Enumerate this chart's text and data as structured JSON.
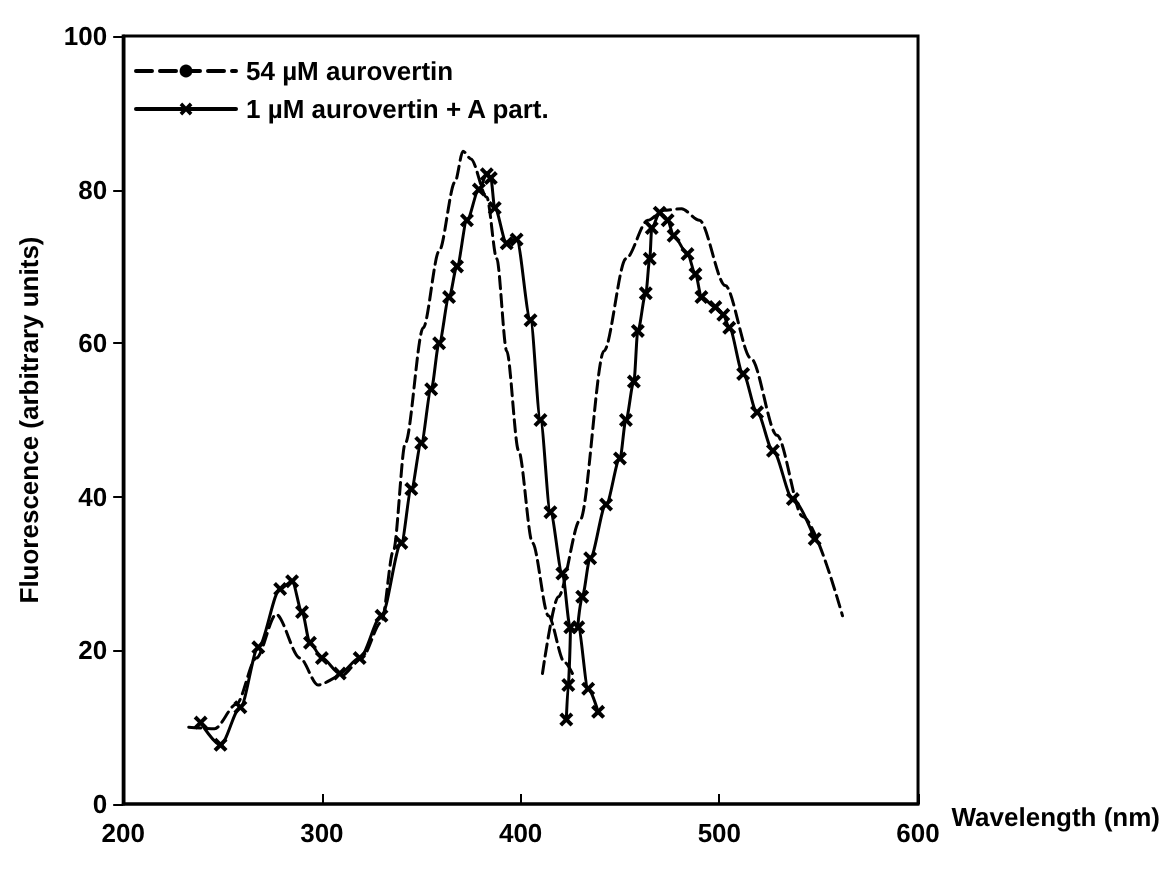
{
  "chart_data": {
    "type": "line",
    "xlabel": "Wavelength (nm)",
    "ylabel": "Fluorescence (arbitrary units)",
    "xlim": [
      200,
      600
    ],
    "xticks": [
      200,
      300,
      400,
      500,
      600
    ],
    "ylim": [
      0,
      100
    ],
    "yticks": [
      0,
      20,
      40,
      60,
      80,
      100
    ],
    "grid": false,
    "legend": "top left",
    "series": [
      {
        "name": "54 µM aurovertin",
        "color": "#000000",
        "marker": "none",
        "line_style": "dashed",
        "x": [
          233,
          246,
          257,
          267,
          277,
          289,
          298,
          310,
          320,
          330,
          336,
          342,
          351,
          359,
          367,
          371,
          375,
          383,
          388,
          393,
          399,
          406,
          414,
          422,
          427
        ],
        "values": [
          10,
          9.8,
          13,
          19,
          24.7,
          19,
          15.5,
          16.7,
          19,
          23.7,
          33,
          47,
          62,
          72,
          81,
          85,
          84,
          79,
          71,
          59,
          46,
          34,
          24.5,
          18.5,
          16.5
        ]
      },
      {
        "color": "#000000",
        "marker": "none",
        "line_style": "dashed",
        "x": [
          411,
          419,
          430,
          442,
          453,
          464,
          472,
          481,
          490,
          503,
          516,
          529,
          542,
          562
        ],
        "values": [
          17,
          27,
          37,
          59,
          71,
          76,
          77.3,
          77.5,
          76,
          67.5,
          58,
          48,
          37.4,
          24.5
        ]
      },
      {
        "name": "1 µM aurovertin + A part.",
        "color": "#000000",
        "marker": "cross",
        "line_style": "solid",
        "x": [
          239,
          249,
          259,
          268,
          279,
          285,
          290,
          294,
          300,
          309,
          319,
          330,
          340,
          345,
          350,
          355,
          359,
          364,
          368,
          373,
          379,
          383,
          385,
          387,
          393,
          398,
          405,
          410,
          415,
          421,
          425,
          424,
          423
        ],
        "values": [
          10.6,
          7.7,
          12.6,
          20.4,
          28,
          29,
          25,
          21,
          19,
          17,
          19,
          24.5,
          34,
          41,
          47,
          54,
          60,
          66,
          70,
          76,
          80,
          82,
          81.5,
          77.6,
          73,
          73.5,
          63,
          50,
          38,
          30,
          23,
          15.5,
          11
        ]
      },
      {
        "color": "#000000",
        "marker": "cross",
        "line_style": "solid",
        "x": [
          439,
          434,
          429,
          431,
          435,
          443,
          450,
          453,
          457,
          459,
          463,
          465,
          466,
          470,
          474,
          477,
          484,
          488,
          491,
          498,
          502,
          505,
          512,
          519,
          527,
          537,
          548
        ],
        "values": [
          12,
          15,
          23,
          27,
          32,
          39,
          45,
          50,
          55,
          61.6,
          66.5,
          71,
          75,
          77,
          76,
          74,
          71.6,
          69,
          66,
          64.7,
          63.7,
          62,
          56,
          51,
          46,
          39.7,
          34.5
        ]
      }
    ]
  }
}
